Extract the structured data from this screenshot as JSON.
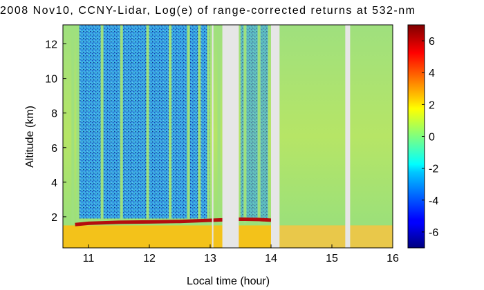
{
  "chart_data": {
    "type": "heatmap",
    "title": "2008 Nov10, CCNY-Lidar, Log(e) of range-corrected returns at 532-nm",
    "xlabel": "Local time (hour)",
    "ylabel": "Altitude (km)",
    "xlim": [
      10.58,
      16.0
    ],
    "ylim": [
      0.2,
      13.1
    ],
    "x_ticks": [
      11,
      12,
      13,
      14,
      15,
      16
    ],
    "y_ticks": [
      2,
      4,
      6,
      8,
      10,
      12
    ],
    "colorbar": {
      "range": [
        -7,
        7
      ],
      "ticks": [
        -6,
        -4,
        -2,
        0,
        2,
        4,
        6
      ],
      "colormap": "jet"
    },
    "no_data_intervals": [
      [
        13.03,
        13.05
      ],
      [
        13.2,
        13.47
      ],
      [
        14.0,
        14.14
      ],
      [
        15.22,
        15.3
      ]
    ],
    "cloud_layer": {
      "x": [
        10.78,
        11.0,
        11.5,
        12.0,
        12.5,
        12.9,
        13.5,
        13.8,
        14.0
      ],
      "altitude": [
        1.55,
        1.62,
        1.68,
        1.7,
        1.73,
        1.78,
        1.86,
        1.84,
        1.8
      ],
      "value": 6
    },
    "boundary_layer_top": 1.5
  }
}
